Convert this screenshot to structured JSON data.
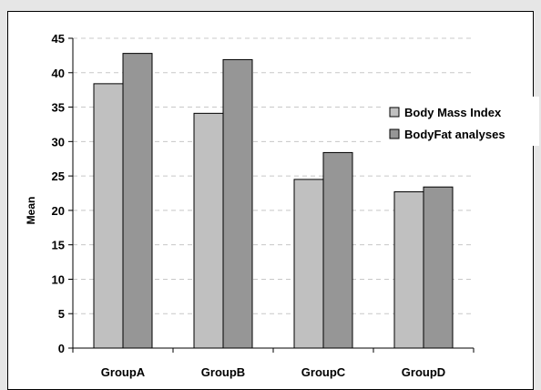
{
  "chart_data": {
    "type": "bar",
    "title": "",
    "xlabel": "",
    "ylabel": "Mean",
    "categories": [
      "GroupA",
      "GroupB",
      "GroupC",
      "GroupD"
    ],
    "series": [
      {
        "name": "Body Mass Index",
        "values": [
          38.4,
          34.1,
          24.5,
          22.7
        ],
        "color": "#c0c0c0"
      },
      {
        "name": "BodyFat analyses",
        "values": [
          42.8,
          41.9,
          28.4,
          23.4
        ],
        "color": "#969696"
      }
    ],
    "ylim": [
      0,
      45
    ],
    "yticks": [
      0,
      5,
      10,
      15,
      20,
      25,
      30,
      35,
      40,
      45
    ],
    "grid": true,
    "legend_position": "right"
  }
}
